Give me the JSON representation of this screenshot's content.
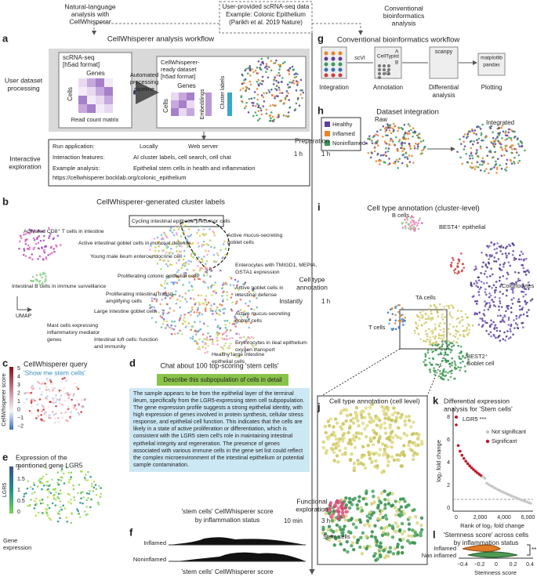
{
  "header": {
    "left": [
      "Natural-language",
      "analysis with",
      "CellWhisperer"
    ],
    "center": [
      "User-provided scRNA-seq data",
      "Example: Colonic Epithelium",
      "(Parikh et al. 2019 Nature)"
    ],
    "right": [
      "Conventional",
      "bioinformatics",
      "analysis"
    ]
  },
  "timeline": {
    "preparation": "Preparation",
    "prep_cw": "1 h",
    "prep_conv": "1 h",
    "annotation": [
      "Cell type",
      "annotation"
    ],
    "annot_cw": "Instantly",
    "annot_conv": "1 h",
    "exploration": [
      "Functional",
      "exploration"
    ],
    "expl_cw": "10 min",
    "expl_conv": "3 h"
  },
  "a": {
    "letter": "a",
    "title": "CellWhisperer analysis workflow",
    "row1": [
      "User dataset",
      "processing"
    ],
    "input": [
      "scRNA-seq",
      "[h5ad format]"
    ],
    "genes": "Genes",
    "cells": "Cells",
    "matrix": "Read count matrix",
    "pipeline": [
      "Automated",
      "processing",
      "pipeline"
    ],
    "output": [
      "CellWhisperer-",
      "ready dataset",
      "[h5ad format]"
    ],
    "genes2": "Genes",
    "cells2": "Cells",
    "embeddings": "Embeddings",
    "cluster_labels": "Cluster labels",
    "row2": [
      "Interactive",
      "exploration"
    ],
    "run": "Run application:",
    "locally": "Locally",
    "web": "Web server",
    "features": "Interaction features:",
    "features_text": "AI cluster labels, cell search, cell chat",
    "example": "Example analysis:",
    "example_text": "Epithelial stem cells in health and inflammation",
    "url": "https://cellwhisperer.bocklab.org/colonic_epithelium"
  },
  "b": {
    "letter": "b",
    "title": "CellWhisperer-generated cluster labels",
    "umap": "UMAP",
    "labels": [
      "Activated CD8⁺ T cells in intestine",
      "Cycling intestinal epithelial precursor cells",
      "Active intestinal goblet cells in mucosal defense",
      "Active mucus-secreting",
      "goblet cells",
      "Young male ileum enteroendocrine cell",
      "Enterocytes with TMIGD1, MEPIA,",
      "GSTA1 expression",
      "Intestinal B cells in immune surveillance",
      "Proliferating colonic epithelial cells",
      "Active goblet cells in",
      "intestinal defense",
      "Proliferating intestinal transit-",
      "amplifying cells",
      "Large intestine goblet cells",
      "Active mucus-secreting",
      "goblet cells",
      "Mast cells expressing",
      "inflammatory mediator",
      "genes",
      "Intestinal tuft cells: function",
      "and immunity",
      "Erythrocytes in ileal epithelium",
      "oxygen transport",
      "Healthy large intestine",
      "epithelial cells"
    ]
  },
  "c": {
    "letter": "c",
    "title": "CellWhisperer query",
    "query": "'Show me stem cells'",
    "axis": "CellWhisperer score",
    "ticks": [
      "5",
      "4",
      "3",
      "2",
      "1",
      "0",
      "−1",
      "−2"
    ]
  },
  "d": {
    "letter": "d",
    "title": "Chat about 100 top-scoring 'stem cells'",
    "prompt": "Describe this subpopulation of cells in detail",
    "answer": "The sample appears to be from the epithelial layer of the terminal ileum, specifically from the LGR5-expressing stem cell subpopulation. The gene expression profile suggests a strong epithelial identity, with high expression of genes involved in protein synthesis, cellular stress response, and epithelial cell function. This indicates that the cells are likely in a state of active proliferation or differentiation, which is consistent with the LGR5 stem cell's role in maintaining intestinal epithelial integrity and regeneration. The presence of genes associated with various immune cells in the gene set list could reflect the complex microenvironment of the intestinal epithelium or potential sample contamination."
  },
  "e": {
    "letter": "e",
    "title": [
      "Expression of the",
      "mentioned gene LGR5"
    ],
    "axis": "LGR5",
    "caption": [
      "Gene",
      "expression"
    ],
    "ticks": [
      "2",
      "1.5",
      "1",
      "0.5",
      "0"
    ]
  },
  "f": {
    "letter": "f",
    "title": [
      "'stem cells' CellWhisperer score",
      "by inflammation status"
    ],
    "groups": [
      "Inflamed",
      "Noninflamed"
    ],
    "xlabel": "'stem cells' CellWhisperer score"
  },
  "g": {
    "letter": "g",
    "title": "Conventional bioinformatics workflow",
    "tools": [
      "scVI",
      "CellTypist",
      "scanpy",
      "matplotlib",
      "pandas"
    ],
    "groups": [
      "A",
      "B",
      "C"
    ],
    "steps": [
      "Integration",
      "Annotation",
      "Differential",
      "analysis",
      "Plotting"
    ]
  },
  "h": {
    "letter": "h",
    "title": "Dataset integration",
    "raw": "Raw",
    "integrated": "Integrated",
    "legend": [
      "Healthy",
      "Inflamed",
      "Noninflamed"
    ]
  },
  "i": {
    "letter": "i",
    "title": "Cell type annotation (cluster-level)",
    "labels": [
      "B cells",
      "BEST4⁺ epithelial",
      "Colonocytes",
      "TA cells",
      "T cells",
      "BEST2⁺",
      "Goblet cell"
    ]
  },
  "j": {
    "letter": "j",
    "title": "Cell type annotation (cell level)",
    "stem": "Stem cells"
  },
  "k": {
    "letter": "k",
    "title": [
      "Differential expression",
      "analysis for 'Stem cells'"
    ],
    "gene": "LGR5 ***",
    "legend": [
      "Not significant",
      "Significant"
    ],
    "ylabel": "log₂ fold change",
    "xlabel": "Rank of log₂ fold change",
    "yticks": [
      "0",
      "2",
      "4",
      "6",
      "8"
    ],
    "xticks": [
      "0",
      "2,000",
      "4,000",
      "6,000"
    ]
  },
  "l": {
    "letter": "l",
    "title": [
      "'Stemness score' across cells",
      "by inflammation status"
    ],
    "groups": [
      "Inflamed",
      "Non inflamed"
    ],
    "xlabel": "Stemness score",
    "sig": "**",
    "xticks": [
      "−0.4",
      "−0.2",
      "0",
      "0.2",
      "0.4"
    ]
  }
}
